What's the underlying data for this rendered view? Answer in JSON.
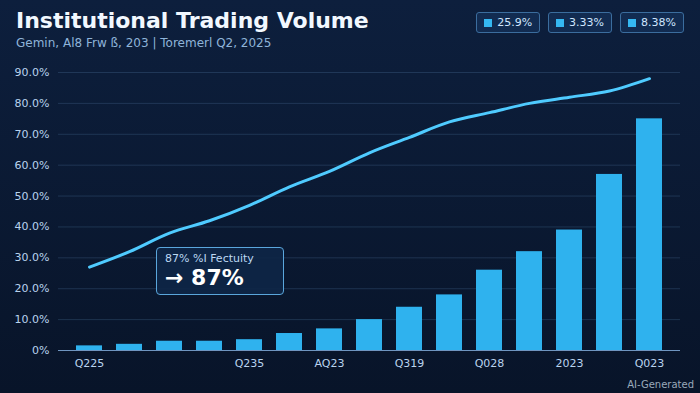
{
  "chart_data": {
    "type": "bar",
    "title": "Institutional Trading Volume",
    "subtitle": "Gemin, Al8 Frw ß, 203 | Toremerl Q2, 2025",
    "categories": [
      "Q225",
      null,
      null,
      null,
      "Q235",
      null,
      "AQ23",
      null,
      "Q319",
      null,
      "Q028",
      null,
      "2023",
      null,
      "Q023"
    ],
    "series": [
      {
        "type": "bar",
        "color": "#2fb2ee",
        "values": [
          1.5,
          2,
          3,
          3,
          3.5,
          5.5,
          7,
          10,
          14,
          18,
          26,
          32,
          39,
          57,
          75
        ]
      },
      {
        "type": "line",
        "color": "#4fcbff",
        "line_style": "solid",
        "values": [
          27,
          32,
          38,
          42,
          47,
          53,
          58,
          64,
          69,
          74,
          77,
          80,
          82,
          84,
          88
        ]
      }
    ],
    "ylim": [
      0,
      90
    ],
    "yticks": [
      {
        "value": 0,
        "label": "0%"
      },
      {
        "value": 10,
        "label": "10.0%"
      },
      {
        "value": 20,
        "label": "20.0%"
      },
      {
        "value": 30,
        "label": "30.0%"
      },
      {
        "value": 40,
        "label": "40.0%"
      },
      {
        "value": 50,
        "label": "50.0%"
      },
      {
        "value": 60,
        "label": "60.0%"
      },
      {
        "value": 70,
        "label": "70.0%"
      },
      {
        "value": 80,
        "label": "80.0%"
      },
      {
        "value": 90,
        "label": "90.0%"
      }
    ],
    "grid": true,
    "callout": {
      "title": "87% %I Fectuity",
      "text": "→ 87%"
    },
    "badges": [
      "25.9%",
      "3.33%",
      "8.38%"
    ],
    "watermark": "AI-Generated"
  }
}
